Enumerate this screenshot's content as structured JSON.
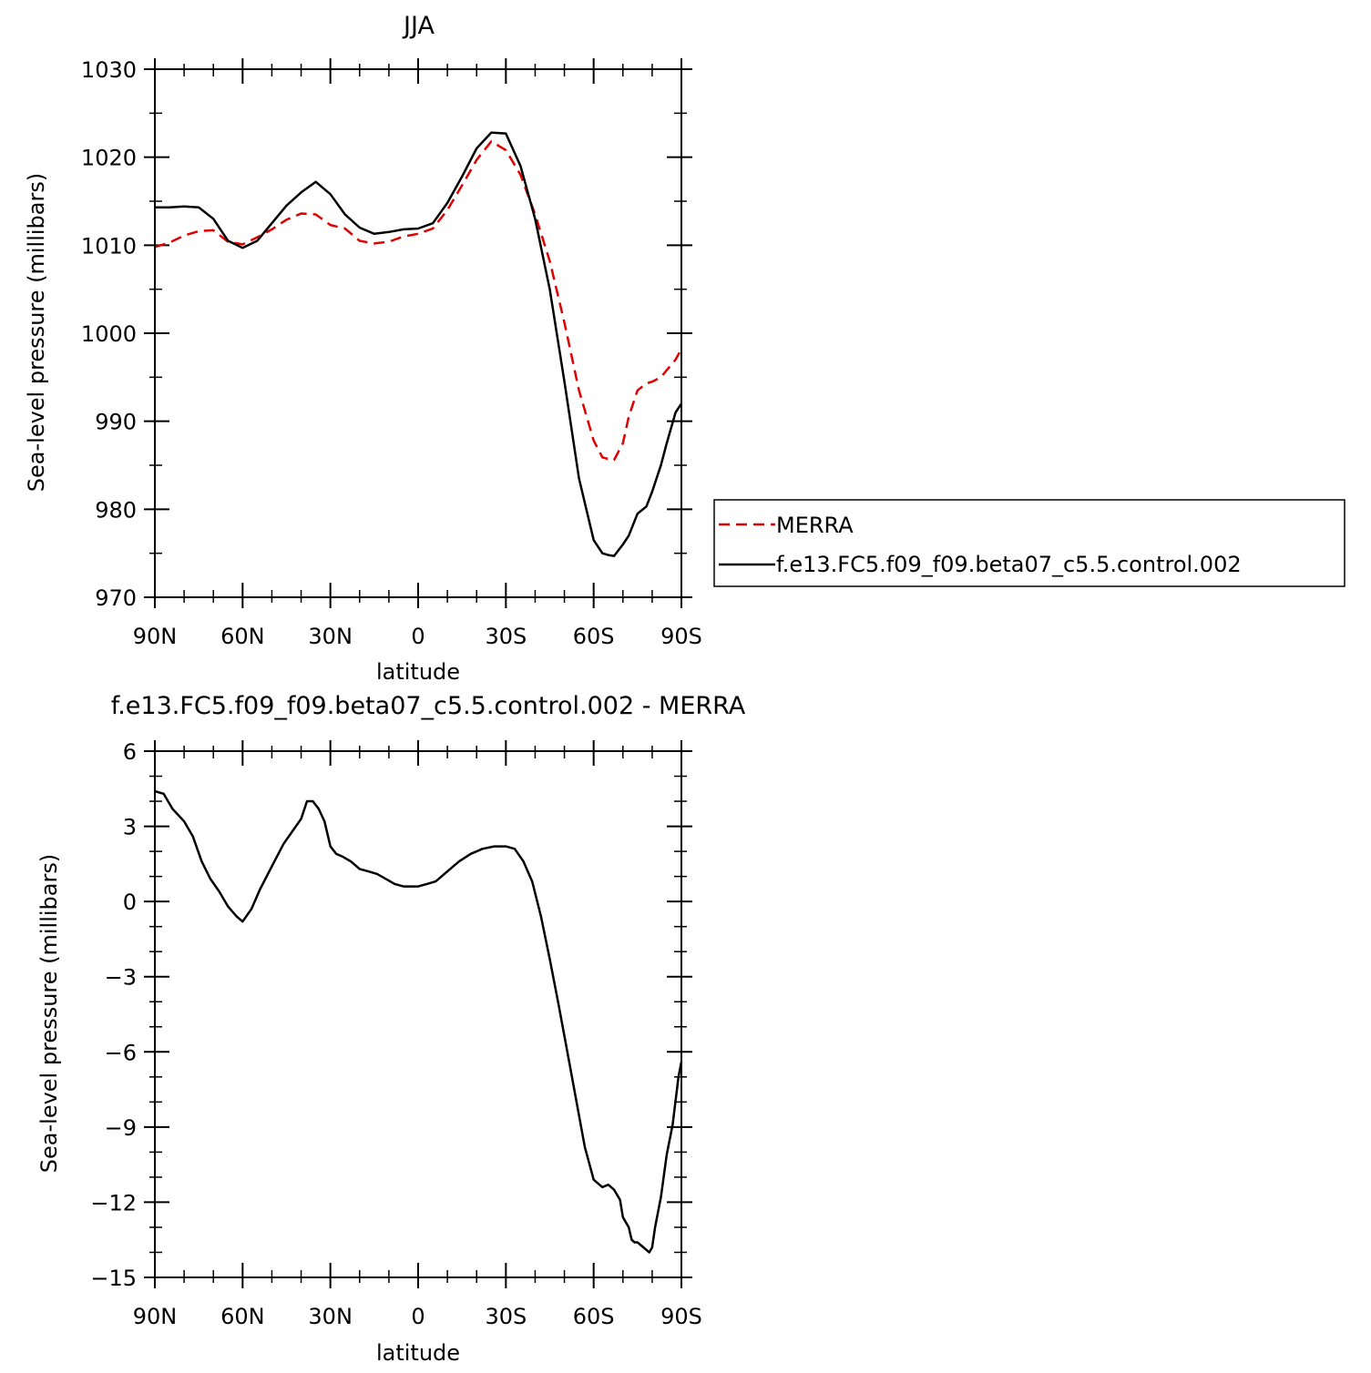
{
  "chart_data": [
    {
      "type": "line",
      "title": "JJA",
      "xlabel": "latitude",
      "ylabel": "Sea-level pressure (millibars)",
      "x_tick_labels": [
        "90N",
        "60N",
        "30N",
        "0",
        "30S",
        "60S",
        "90S"
      ],
      "x_ticks": [
        90,
        60,
        30,
        0,
        -30,
        -60,
        -90
      ],
      "xlim": [
        90,
        -90
      ],
      "ylim": [
        970,
        1030
      ],
      "y_ticks": [
        970,
        980,
        990,
        1000,
        1010,
        1020,
        1030
      ],
      "y_tick_labels": [
        "970",
        "980",
        "990",
        "1000",
        "1010",
        "1020",
        "1030"
      ],
      "legend_position": "right",
      "series": [
        {
          "name": "MERRA",
          "color": "#e00000",
          "dash": "dashed",
          "x": [
            90,
            85,
            80,
            75,
            70,
            65,
            60,
            55,
            50,
            45,
            40,
            35,
            30,
            25,
            20,
            15,
            10,
            5,
            0,
            -5,
            -10,
            -15,
            -20,
            -25,
            -30,
            -35,
            -40,
            -45,
            -50,
            -55,
            -60,
            -63,
            -65,
            -67,
            -70,
            -72,
            -75,
            -78,
            -80,
            -83,
            -85,
            -88,
            -90
          ],
          "y": [
            1009.8,
            1010.3,
            1011.1,
            1011.6,
            1011.7,
            1010.4,
            1010.1,
            1010.9,
            1011.8,
            1012.9,
            1013.6,
            1013.5,
            1012.3,
            1011.9,
            1010.5,
            1010.2,
            1010.4,
            1011,
            1011.3,
            1011.9,
            1014,
            1016.8,
            1019.7,
            1021.8,
            1020.8,
            1018,
            1013.5,
            1008.2,
            1001.2,
            993.5,
            987.8,
            985.9,
            985.7,
            985.6,
            987.5,
            990.5,
            993.5,
            994.3,
            994.5,
            995,
            995.8,
            997,
            998.2
          ]
        },
        {
          "name": "f.e13.FC5.f09_f09.beta07_c5.5.control.002",
          "color": "#000000",
          "dash": "solid",
          "x": [
            90,
            85,
            80,
            75,
            70,
            65,
            60,
            55,
            50,
            45,
            40,
            35,
            30,
            25,
            20,
            15,
            10,
            5,
            0,
            -5,
            -10,
            -15,
            -20,
            -25,
            -30,
            -35,
            -40,
            -45,
            -50,
            -55,
            -60,
            -63,
            -65,
            -67,
            -70,
            -72,
            -75,
            -78,
            -80,
            -83,
            -85,
            -88,
            -90
          ],
          "y": [
            1014.3,
            1014.3,
            1014.4,
            1014.3,
            1013,
            1010.5,
            1009.7,
            1010.5,
            1012.5,
            1014.5,
            1016,
            1017.2,
            1015.8,
            1013.5,
            1012,
            1011.3,
            1011.5,
            1011.8,
            1011.9,
            1012.5,
            1014.8,
            1017.8,
            1021,
            1022.8,
            1022.7,
            1019,
            1013,
            1005,
            994.5,
            983.5,
            976.5,
            975,
            974.8,
            974.7,
            976,
            977,
            979.5,
            980.3,
            982,
            985,
            987.5,
            991,
            992
          ]
        }
      ]
    },
    {
      "type": "line",
      "title": "f.e13.FC5.f09_f09.beta07_c5.5.control.002 - MERRA",
      "xlabel": "latitude",
      "ylabel": "Sea-level pressure (millibars)",
      "x_tick_labels": [
        "90N",
        "60N",
        "30N",
        "0",
        "30S",
        "60S",
        "90S"
      ],
      "x_ticks": [
        90,
        60,
        30,
        0,
        -30,
        -60,
        -90
      ],
      "xlim": [
        90,
        -90
      ],
      "ylim": [
        -15,
        6
      ],
      "y_ticks": [
        -15,
        -12,
        -9,
        -6,
        -3,
        0,
        3,
        6
      ],
      "y_tick_labels": [
        "−15",
        "−12",
        "−9",
        "−6",
        "−3",
        "0",
        "3",
        "6"
      ],
      "series": [
        {
          "color": "#000000",
          "dash": "solid",
          "x": [
            90,
            87,
            84,
            80,
            77,
            74,
            71,
            68,
            65,
            62,
            60,
            57,
            54,
            50,
            46,
            43,
            40,
            38,
            36,
            34,
            32,
            30,
            28,
            26,
            23,
            20,
            17,
            14,
            11,
            8,
            5,
            2,
            0,
            -3,
            -6,
            -10,
            -14,
            -18,
            -22,
            -26,
            -30,
            -33,
            -36,
            -39,
            -42,
            -45,
            -48,
            -51,
            -54,
            -57,
            -60,
            -63,
            -65,
            -67,
            -69,
            -70,
            -72,
            -73,
            -74,
            -75,
            -77,
            -79,
            -80,
            -81,
            -83,
            -85,
            -87,
            -89,
            -90
          ],
          "y": [
            4.4,
            4.3,
            3.7,
            3.2,
            2.6,
            1.6,
            0.9,
            0.4,
            -0.2,
            -0.6,
            -0.8,
            -0.3,
            0.5,
            1.4,
            2.3,
            2.8,
            3.3,
            4,
            4,
            3.7,
            3.2,
            2.2,
            1.9,
            1.8,
            1.6,
            1.3,
            1.2,
            1.1,
            0.9,
            0.7,
            0.6,
            0.6,
            0.6,
            0.7,
            0.8,
            1.2,
            1.6,
            1.9,
            2.1,
            2.2,
            2.2,
            2.1,
            1.6,
            0.8,
            -0.6,
            -2.3,
            -4.1,
            -6,
            -7.9,
            -9.8,
            -11.1,
            -11.4,
            -11.3,
            -11.5,
            -11.9,
            -12.6,
            -13,
            -13.5,
            -13.6,
            -13.6,
            -13.8,
            -14,
            -13.8,
            -13,
            -11.8,
            -10.1,
            -8.9,
            -7,
            -6.4
          ]
        }
      ]
    }
  ]
}
